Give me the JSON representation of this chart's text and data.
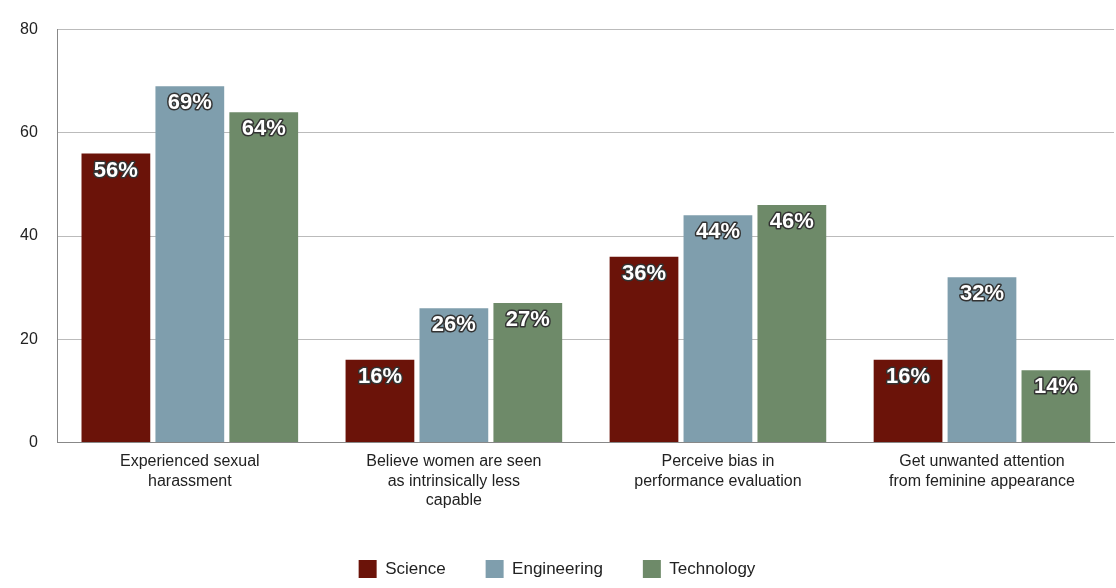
{
  "chart_data": {
    "type": "bar",
    "categories": [
      "Experienced sexual harassment",
      "Believe women are seen as intrinsically less capable",
      "Perceive bias in performance evaluation",
      "Get unwanted attention from feminine appearance"
    ],
    "series": [
      {
        "name": "Science",
        "color": "#6b1309",
        "values": [
          56,
          16,
          36,
          16
        ],
        "value_labels": [
          "56%",
          "16%",
          "36%",
          "16%"
        ]
      },
      {
        "name": "Engineering",
        "color": "#7f9ead",
        "values": [
          69,
          26,
          44,
          32
        ],
        "value_labels": [
          "69%",
          "26%",
          "44%",
          "32%"
        ]
      },
      {
        "name": "Technology",
        "color": "#6e8a69",
        "values": [
          64,
          27,
          46,
          14
        ],
        "value_labels": [
          "64%",
          "27%",
          "46%",
          "14%"
        ]
      }
    ],
    "ylim": [
      0,
      80
    ],
    "yticks": [
      0,
      20,
      40,
      60,
      80
    ],
    "grid": "y",
    "legend": "bottom"
  }
}
